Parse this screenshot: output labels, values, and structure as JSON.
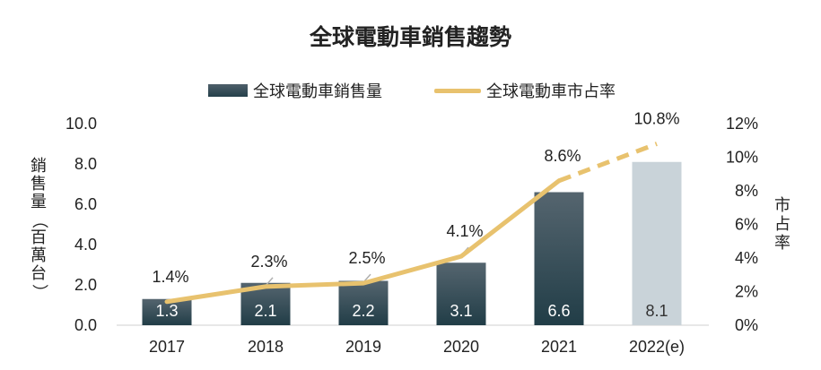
{
  "chart_data": {
    "type": "bar",
    "title": "全球電動車銷售趨勢",
    "categories": [
      "2017",
      "2018",
      "2019",
      "2020",
      "2021",
      "2022(e)"
    ],
    "series": [
      {
        "name": "全球電動車銷售量",
        "type": "bar",
        "axis": "left",
        "values": [
          1.3,
          2.1,
          2.2,
          3.1,
          6.6,
          8.1
        ],
        "labels": [
          "1.3",
          "2.1",
          "2.2",
          "3.1",
          "6.6",
          "8.1"
        ],
        "color": "#2a4550",
        "estimate_color": "#c9d3d9"
      },
      {
        "name": "全球電動車市占率",
        "type": "line",
        "axis": "right",
        "values": [
          1.4,
          2.3,
          2.5,
          4.1,
          8.6,
          10.8
        ],
        "labels": [
          "1.4%",
          "2.3%",
          "2.5%",
          "4.1%",
          "8.6%",
          "10.8%"
        ],
        "color": "#e8c26e",
        "dashed_from_index": 4
      }
    ],
    "y_left": {
      "label": "銷售量（百萬台）",
      "ylim": [
        0,
        10
      ],
      "ticks": [
        "0.0",
        "2.0",
        "4.0",
        "6.0",
        "8.0",
        "10.0"
      ]
    },
    "y_right": {
      "label": "市占率",
      "ylim": [
        0,
        12
      ],
      "ticks": [
        "0%",
        "2%",
        "4%",
        "6%",
        "8%",
        "10%",
        "12%"
      ]
    },
    "grid": false,
    "legend_position": "top-center"
  }
}
